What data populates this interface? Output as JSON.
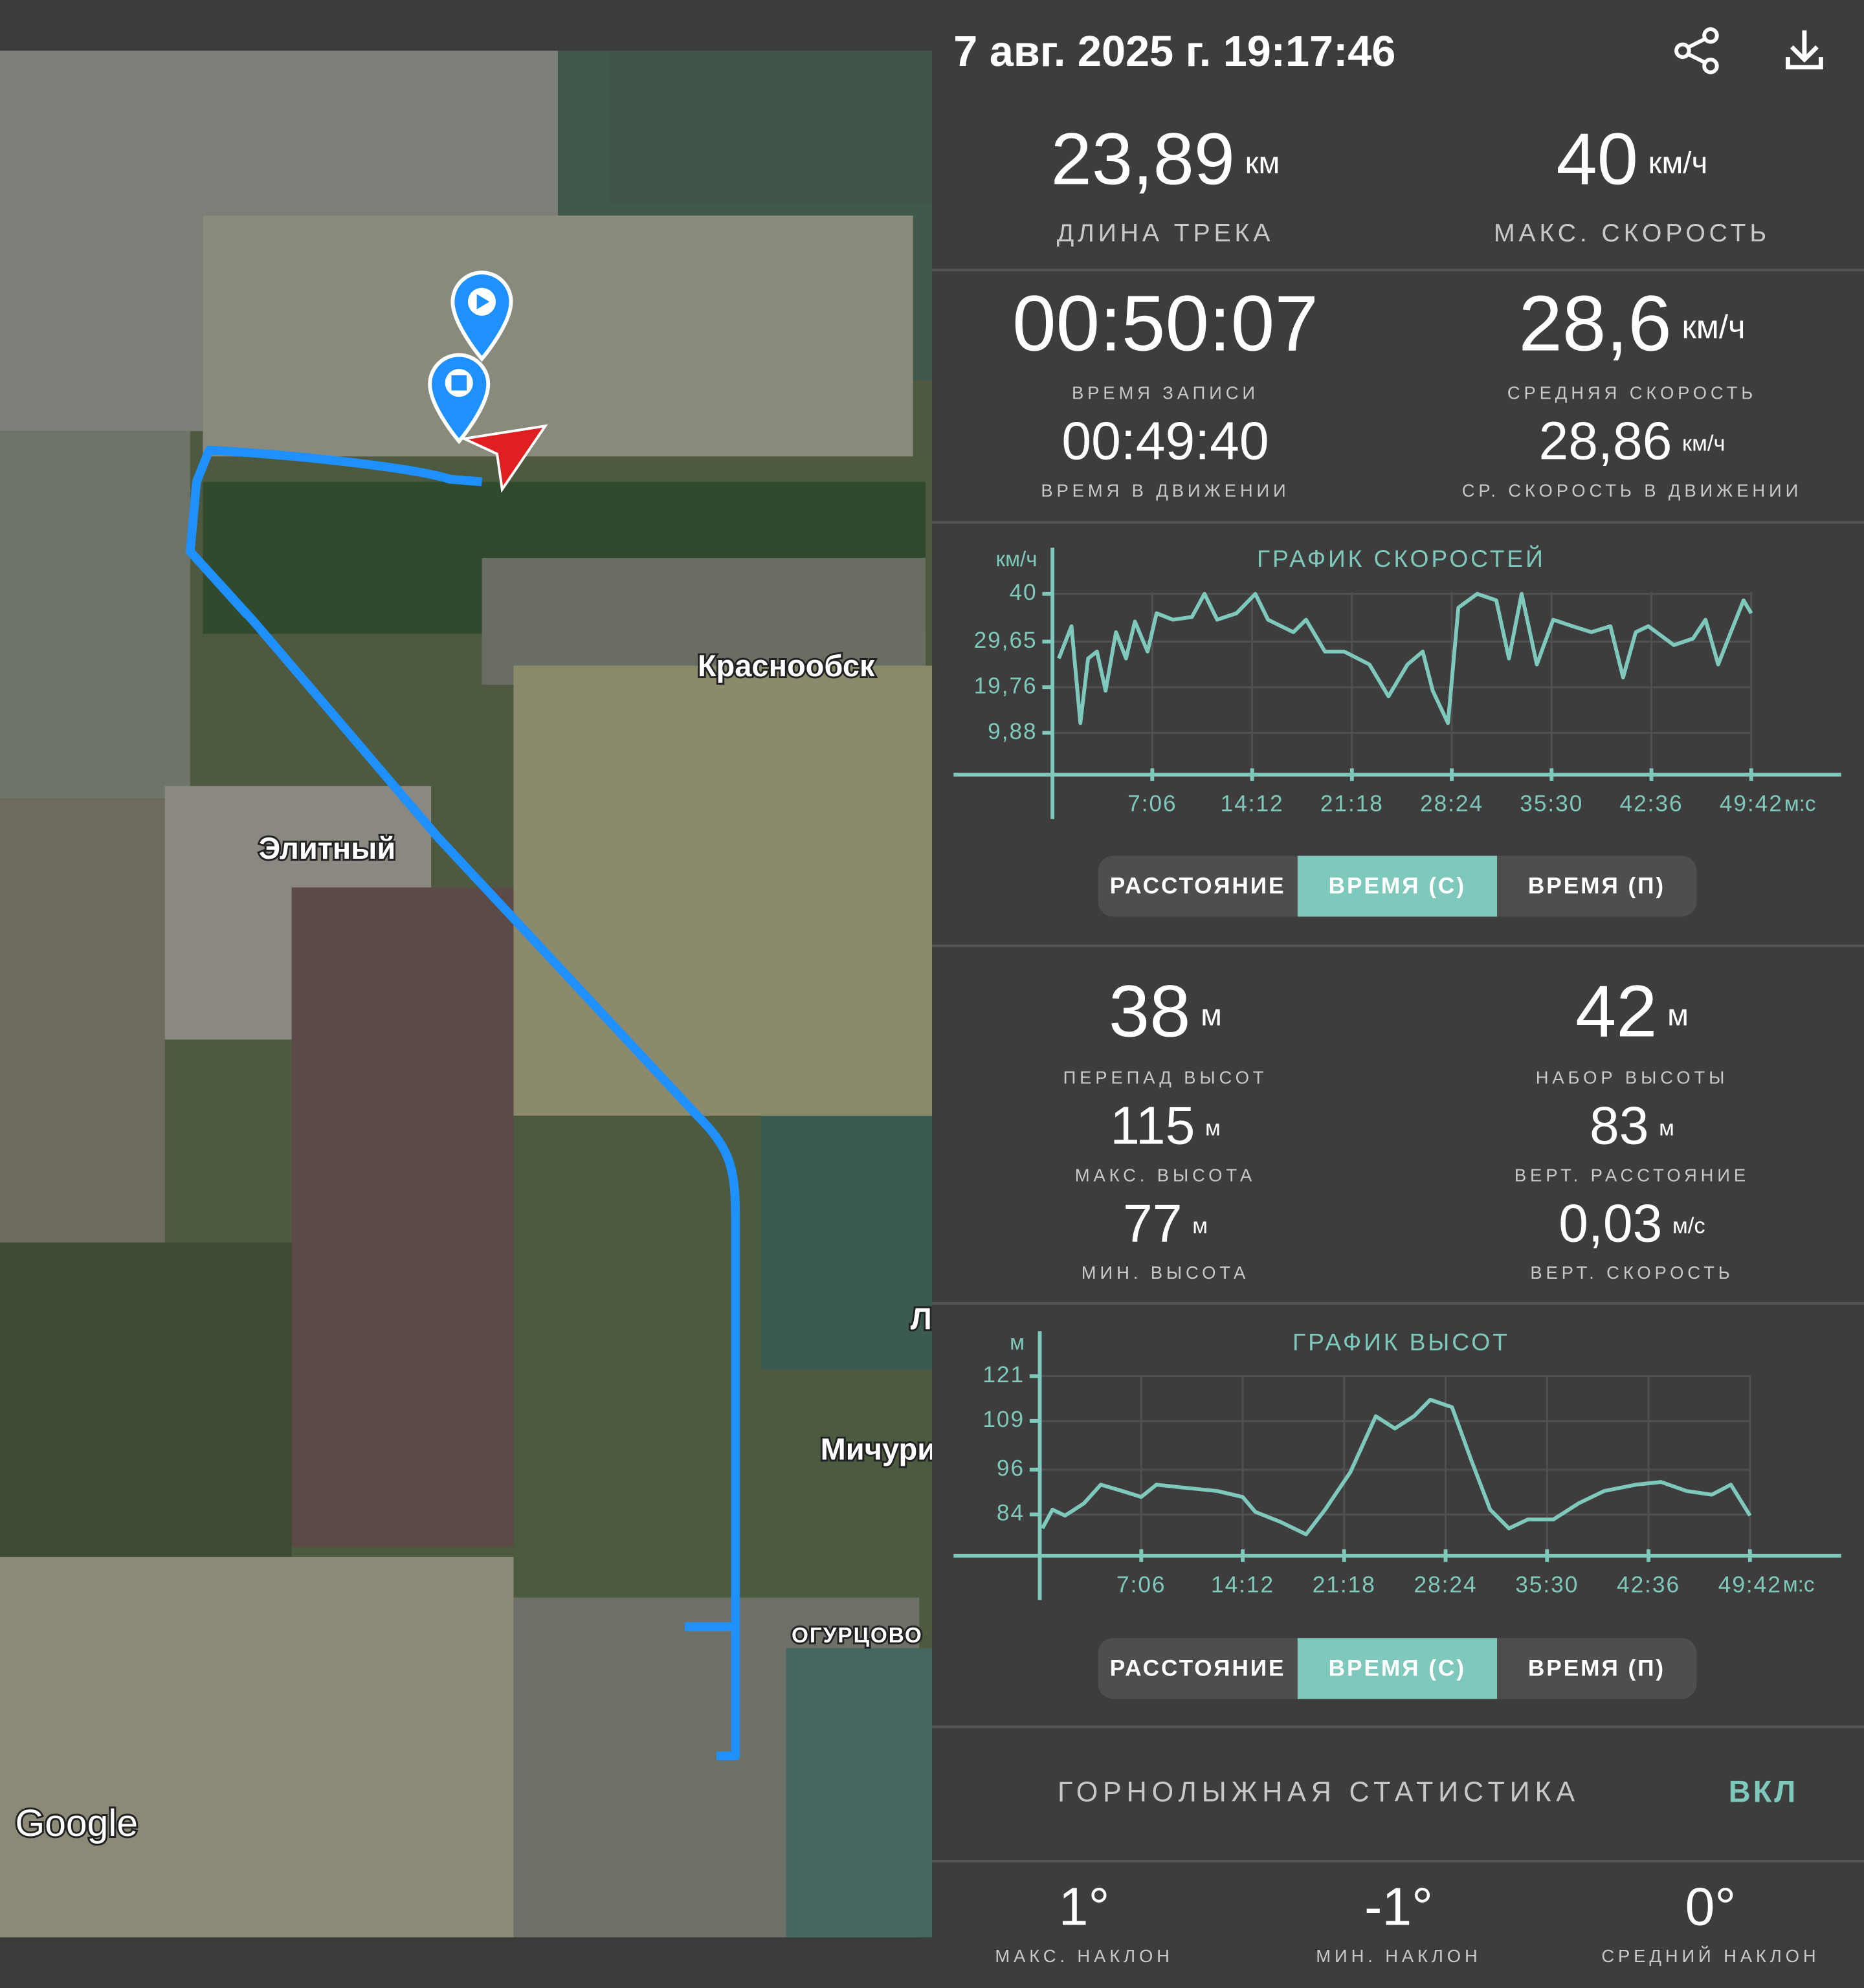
{
  "header": {
    "title": "7 авг. 2025 г. 19:17:46"
  },
  "map": {
    "labels": [
      "Краснообск",
      "Элитный",
      "Л",
      "Мичури",
      "ОГУРЦОВО"
    ],
    "attribution": "Google"
  },
  "stats": [
    {
      "value": "23,89",
      "unit": "км",
      "label": "ДЛИНА ТРЕКА"
    },
    {
      "value": "40",
      "unit": "км/ч",
      "label": "МАКС. СКОРОСТЬ"
    },
    {
      "value": "00:50:07",
      "label": "ВРЕМЯ ЗАПИСИ"
    },
    {
      "value": "28,6",
      "unit": "км/ч",
      "label": "СРЕДНЯЯ СКОРОСТЬ"
    },
    {
      "value": "00:49:40",
      "label": "ВРЕМЯ В ДВИЖЕНИИ"
    },
    {
      "value": "28,86",
      "unit": "км/ч",
      "label": "СР. СКОРОСТЬ В ДВИЖЕНИИ"
    }
  ],
  "elevation_stats": [
    {
      "value": "38",
      "unit": "м",
      "label": "ПЕРЕПАД ВЫСОТ"
    },
    {
      "value": "42",
      "unit": "м",
      "label": "НАБОР ВЫСОТЫ"
    },
    {
      "value": "115",
      "unit": "м",
      "label": "МАКС. ВЫСОТА"
    },
    {
      "value": "83",
      "unit": "м",
      "label": "ВЕРТ. РАССТОЯНИЕ"
    },
    {
      "value": "77",
      "unit": "м",
      "label": "МИН. ВЫСОТА"
    },
    {
      "value": "0,03",
      "unit": "м/с",
      "label": "ВЕРТ. СКОРОСТЬ"
    }
  ],
  "toggles": {
    "options": [
      "РАССТОЯНИЕ",
      "ВРЕМЯ (С)",
      "ВРЕМЯ (П)"
    ],
    "selected": 1
  },
  "chart_data": [
    {
      "type": "line",
      "title": "ГРАФИК СКОРОСТЕЙ",
      "y_label": "км/ч",
      "x_label": "м:с",
      "color": "#7fc8bc",
      "grid": true,
      "x": [
        27,
        81,
        119,
        152,
        190,
        227,
        271,
        314,
        352,
        406,
        444,
        514,
        595,
        649,
        703,
        785,
        866,
        920,
        1028,
        1082,
        1163,
        1245,
        1353,
        1434,
        1515,
        1580,
        1623,
        1688,
        1732,
        1813,
        1894,
        1948,
        2002,
        2067,
        2137,
        2219,
        2300,
        2381,
        2435,
        2489,
        2543,
        2652,
        2733,
        2787,
        2841,
        2895,
        2949,
        2982
      ],
      "values": [
        26,
        33,
        12,
        26,
        27.5,
        19,
        31.7,
        26,
        34,
        27.5,
        35.8,
        34.4,
        35,
        40,
        34.4,
        35.8,
        40,
        34.4,
        31.7,
        34.4,
        27.5,
        27.5,
        24.7,
        17.8,
        24.7,
        27.5,
        19,
        12,
        37,
        40,
        38.6,
        26,
        40,
        24.7,
        34.4,
        33,
        31.7,
        33,
        21.9,
        31.7,
        33,
        28.9,
        30.3,
        34.4,
        24.7,
        31.7,
        38.6,
        35.8
      ],
      "xlim": [
        0,
        3355
      ],
      "ylim": [
        0,
        50
      ],
      "xticks": [
        {
          "value": 426,
          "label": "7:06"
        },
        {
          "value": 852,
          "label": "14:12"
        },
        {
          "value": 1278,
          "label": "21:18"
        },
        {
          "value": 1704,
          "label": "28:24"
        },
        {
          "value": 2130,
          "label": "35:30"
        },
        {
          "value": 2556,
          "label": "42:36"
        },
        {
          "value": 2982,
          "label": "49:42"
        }
      ],
      "yticks": [
        {
          "value": 9.88,
          "label": "9,88"
        },
        {
          "value": 19.76,
          "label": "19,76"
        },
        {
          "value": 29.65,
          "label": "29,65"
        },
        40
      ]
    },
    {
      "type": "line",
      "title": "ГРАФИК ВЫСОТ",
      "y_label": "м",
      "x_label": "м:с",
      "color": "#7fc8bc",
      "grid": true,
      "x": [
        11,
        53,
        106,
        186,
        256,
        346,
        426,
        490,
        586,
        745,
        852,
        905,
        1012,
        1118,
        1198,
        1304,
        1411,
        1491,
        1571,
        1640,
        1731,
        1811,
        1891,
        1970,
        2050,
        2157,
        2263,
        2370,
        2503,
        2609,
        2716,
        2822,
        2902,
        2982
      ],
      "values": [
        80.3,
        85.3,
        83.7,
        87,
        92,
        90.3,
        88.7,
        92,
        91.3,
        90.3,
        88.7,
        84.7,
        82,
        78.7,
        85.3,
        95.3,
        110.3,
        107,
        110.3,
        114.7,
        112.7,
        98.7,
        85.3,
        80.3,
        82.7,
        82.7,
        87,
        90.3,
        92,
        92.7,
        90.3,
        89.3,
        92,
        83.7
      ],
      "xlim": [
        0,
        3365
      ],
      "ylim": [
        73,
        133
      ],
      "xticks": [
        {
          "value": 426,
          "label": "7:06"
        },
        {
          "value": 852,
          "label": "14:12"
        },
        {
          "value": 1278,
          "label": "21:18"
        },
        {
          "value": 1704,
          "label": "28:24"
        },
        {
          "value": 2130,
          "label": "35:30"
        },
        {
          "value": 2556,
          "label": "42:36"
        },
        {
          "value": 2982,
          "label": "49:42"
        }
      ],
      "yticks": [
        84,
        96,
        109,
        121
      ]
    }
  ],
  "ski": {
    "title": "ГОРНОЛЫЖНАЯ СТАТИСТИКА",
    "toggle": "ВКЛ",
    "stats": [
      {
        "value": "1°",
        "label": "МАКС. НАКЛОН"
      },
      {
        "value": "-1°",
        "label": "МИН. НАКЛОН"
      },
      {
        "value": "0°",
        "label": "СРЕДНИЙ НАКЛОН"
      }
    ]
  }
}
